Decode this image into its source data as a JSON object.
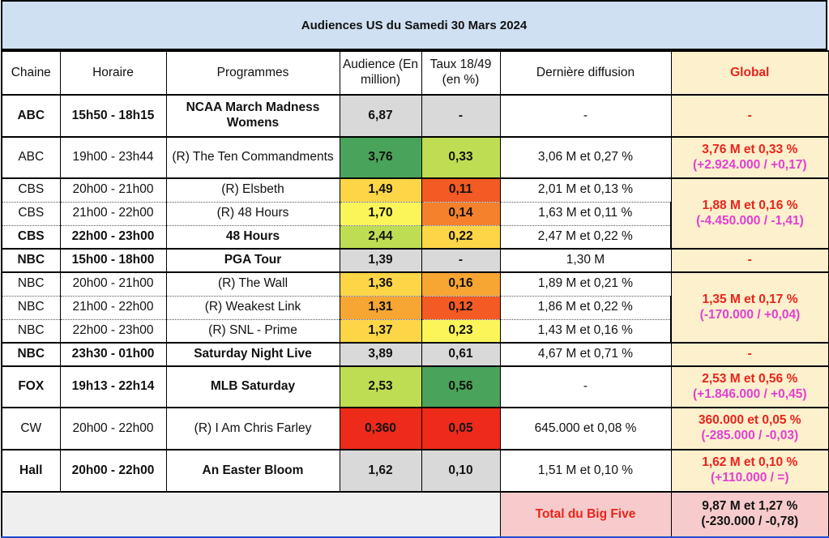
{
  "title": "Audiences US du Samedi 30 Mars 2024",
  "headers": {
    "chaine": "Chaine",
    "horaire": "Horaire",
    "programmes": "Programmes",
    "audience": "Audience (En million)",
    "taux": "Taux 18/49 (en %)",
    "derniere": "Dernière diffusion",
    "global": "Global"
  },
  "colors": {
    "gray": "#d9d9d9",
    "dark_green": "#4aa35a",
    "light_green": "#bfdd52",
    "yellow": "#fbf55a",
    "yellow_orange": "#fdd647",
    "orange": "#f7a533",
    "dark_orange": "#f5812c",
    "red_orange": "#f45a23",
    "red": "#ee2a1b"
  },
  "rows": [
    {
      "chaine": "ABC",
      "horaire": "15h50 - 18h15",
      "programme": "NCAA March Madness Womens",
      "audience": "6,87",
      "taux": "-",
      "derniere": "-",
      "bold": true
    },
    {
      "chaine": "ABC",
      "horaire": "19h00 - 23h44",
      "programme": "(R) The Ten Commandments",
      "audience": "3,76",
      "taux": "0,33",
      "derniere": "3,06 M et 0,27 %",
      "bold": false
    },
    {
      "chaine": "CBS",
      "horaire": "20h00 - 21h00",
      "programme": "(R) Elsbeth",
      "audience": "1,49",
      "taux": "0,11",
      "derniere": "2,01 M et 0,13 %",
      "bold": false
    },
    {
      "chaine": "CBS",
      "horaire": "21h00 - 22h00",
      "programme": "(R) 48 Hours",
      "audience": "1,70",
      "taux": "0,14",
      "derniere": "1,63 M et 0,11 %",
      "bold": false
    },
    {
      "chaine": "CBS",
      "horaire": "22h00 - 23h00",
      "programme": "48 Hours",
      "audience": "2,44",
      "taux": "0,22",
      "derniere": "2,47 M et 0,22 %",
      "bold": true
    },
    {
      "chaine": "NBC",
      "horaire": "15h00 - 18h00",
      "programme": "PGA Tour",
      "audience": "1,39",
      "taux": "-",
      "derniere": "1,30 M",
      "bold": true
    },
    {
      "chaine": "NBC",
      "horaire": "20h00 - 21h00",
      "programme": "(R) The Wall",
      "audience": "1,36",
      "taux": "0,16",
      "derniere": "1,89 M et 0,21 %",
      "bold": false
    },
    {
      "chaine": "NBC",
      "horaire": "21h00 - 22h00",
      "programme": "(R) Weakest Link",
      "audience": "1,31",
      "taux": "0,12",
      "derniere": "1,86 M et 0,22 %",
      "bold": false
    },
    {
      "chaine": "NBC",
      "horaire": "22h00 - 23h00",
      "programme": "(R) SNL - Prime",
      "audience": "1,37",
      "taux": "0,23",
      "derniere": "1,43 M et 0,16 %",
      "bold": false
    },
    {
      "chaine": "NBC",
      "horaire": "23h30 - 01h00",
      "programme": "Saturday Night Live",
      "audience": "3,89",
      "taux": "0,61",
      "derniere": "4,67 M et 0,71 %",
      "bold": true
    },
    {
      "chaine": "FOX",
      "horaire": "19h13 - 22h14",
      "programme": "MLB Saturday",
      "audience": "2,53",
      "taux": "0,56",
      "derniere": "-",
      "bold": true
    },
    {
      "chaine": "CW",
      "horaire": "20h00 - 22h00",
      "programme": "(R) I Am Chris Farley",
      "audience": "0,360",
      "taux": "0,05",
      "derniere": "645.000 et 0,08 %",
      "bold": false
    },
    {
      "chaine": "Hall",
      "horaire": "20h00 - 22h00",
      "programme": "An Easter Bloom",
      "audience": "1,62",
      "taux": "0,10",
      "derniere": "1,51 M et 0,10 %",
      "bold": true
    }
  ],
  "globals": [
    {
      "main": "-",
      "delta": ""
    },
    {
      "main": "3,76 M et 0,33 %",
      "delta": "(+2.924.000 / +0,17)"
    },
    {
      "main": "1,88 M et 0,16 %",
      "delta": "(-4.450.000 / -1,41)"
    },
    {
      "main": "-",
      "delta": ""
    },
    {
      "main": "1,35 M et 0,17 %",
      "delta": "(-170.000 / +0,04)"
    },
    {
      "main": "-",
      "delta": ""
    },
    {
      "main": "2,53 M et 0,56 %",
      "delta": "(+1.846.000 / +0,45)"
    },
    {
      "main": "360.000 et 0,05 %",
      "delta": "(-285.000 / -0,03)"
    },
    {
      "main": "1,62 M et 0,10 %",
      "delta": "(+110.000 / =)"
    }
  ],
  "total": {
    "label": "Total du Big Five",
    "value": "9,87 M et 1,27 %",
    "delta": "(-230.000 / -0,78)"
  }
}
